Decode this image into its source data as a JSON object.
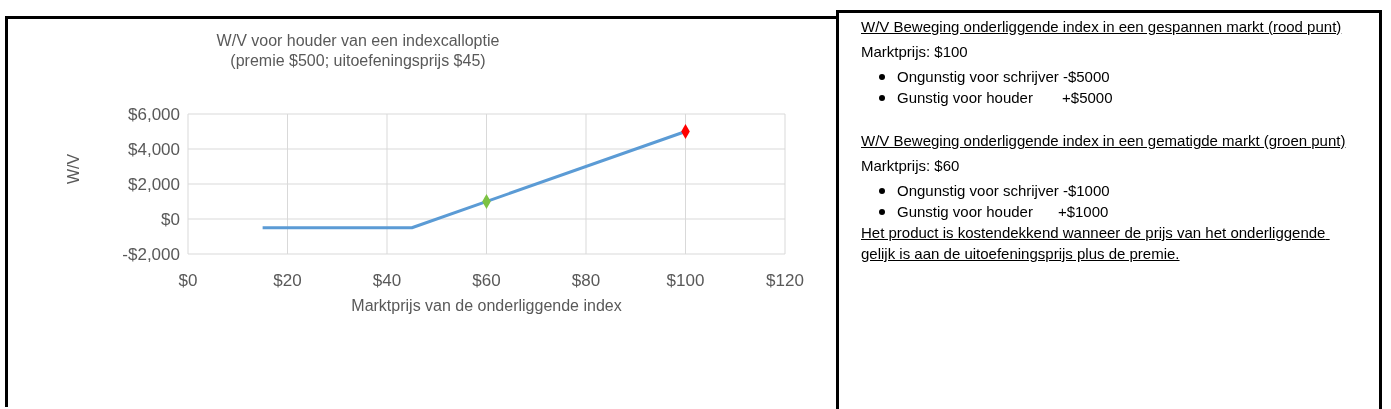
{
  "chart_data": [
    {
      "type": "line",
      "title": "W/V voor houder van een indexcalloptie",
      "subtitle": "(premie $500; uitoefeningsprijs $45)",
      "xlabel": "Marktprijs van de onderliggende index",
      "ylabel": "W/V",
      "xlim": [
        0,
        120
      ],
      "xticks": [
        {
          "value": 0,
          "label": "$0"
        },
        {
          "value": 20,
          "label": "$20"
        },
        {
          "value": 40,
          "label": "$40"
        },
        {
          "value": 60,
          "label": "$60"
        },
        {
          "value": 80,
          "label": "$80"
        },
        {
          "value": 100,
          "label": "$100"
        },
        {
          "value": 120,
          "label": "$120"
        }
      ],
      "ylim": [
        -2000,
        6000
      ],
      "yticks": [
        {
          "value": -2000,
          "label": "-$2,000"
        },
        {
          "value": 0,
          "label": "$0"
        },
        {
          "value": 2000,
          "label": "$2,000"
        },
        {
          "value": 4000,
          "label": "$4,000"
        },
        {
          "value": 6000,
          "label": "$6,000"
        }
      ],
      "grid": true,
      "series": [
        {
          "type": "line",
          "x": [
            15,
            45,
            100
          ],
          "values": [
            -500,
            -500,
            5000
          ],
          "color": "#5b9bd5",
          "marker": "none"
        },
        {
          "type": "scatter",
          "x": [
            60
          ],
          "values": [
            1000
          ],
          "color": "#7cc242",
          "marker": "diamond"
        },
        {
          "type": "scatter",
          "x": [
            100
          ],
          "values": [
            5000
          ],
          "color": "#ff0000",
          "marker": "diamond"
        }
      ]
    },
    {
      "type": "other",
      "annotations": [
        "W/V Beweging onderliggende index in een gespannen markt (rood punt)",
        "Marktprijs: $100",
        "Ongunstig voor schrijver -$5000",
        "Gunstig voor houder       +$5000",
        "W/V Beweging onderliggende index in een gematigde markt (groen punt)",
        "Marktprijs: $60",
        "Ongunstig voor schrijver -$1000",
        "Gunstig voor houder      +$1000",
        "Het product is kostendekkend wanneer de prijs van het onderliggende gelijk is aan de uitoefeningsprijs plus de premie."
      ]
    }
  ]
}
